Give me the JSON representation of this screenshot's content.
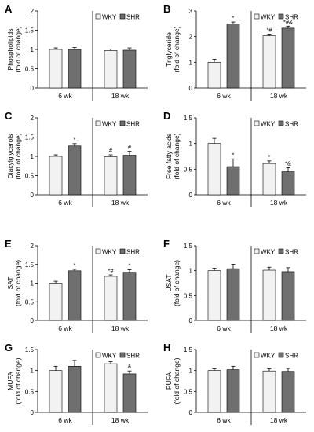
{
  "legend": {
    "items": [
      {
        "label": "WKY",
        "color": "#f2f2f2"
      },
      {
        "label": "SHR",
        "color": "#6f6f6f"
      }
    ]
  },
  "chart_data": [
    {
      "panel": "A",
      "type": "bar",
      "ylabel": [
        "Phospholipids",
        "(fold of change)"
      ],
      "ylim": [
        0,
        2
      ],
      "yticks": [
        "0",
        "0.5",
        "1",
        "1.5",
        "2"
      ],
      "tick_values": [
        0,
        0.5,
        1,
        1.5,
        2
      ],
      "categories": [
        "6 wk",
        "18 wk"
      ],
      "series": [
        {
          "name": "WKY",
          "values": [
            1.0,
            0.97
          ],
          "errors": [
            0.04,
            0.04
          ],
          "marks": [
            "",
            ""
          ]
        },
        {
          "name": "SHR",
          "values": [
            1.0,
            0.98
          ],
          "errors": [
            0.05,
            0.06
          ],
          "marks": [
            "",
            ""
          ]
        }
      ]
    },
    {
      "panel": "B",
      "type": "bar",
      "ylabel": [
        "Triglyceride",
        "(fold of change)"
      ],
      "ylim": [
        0,
        3
      ],
      "yticks": [
        "0",
        "1",
        "2",
        "3"
      ],
      "tick_values": [
        0,
        1,
        2,
        3
      ],
      "categories": [
        "6 wk",
        "18 wk"
      ],
      "series": [
        {
          "name": "WKY",
          "values": [
            1.0,
            2.03
          ],
          "errors": [
            0.12,
            0.07
          ],
          "marks": [
            "",
            "*#"
          ]
        },
        {
          "name": "SHR",
          "values": [
            2.5,
            2.33
          ],
          "errors": [
            0.07,
            0.08
          ],
          "marks": [
            "*",
            "*#&"
          ]
        }
      ]
    },
    {
      "panel": "C",
      "type": "bar",
      "ylabel": [
        "Diacylglycerols",
        "(fold of change)"
      ],
      "ylim": [
        0,
        2
      ],
      "yticks": [
        "0",
        "0.5",
        "1",
        "1.5",
        "2"
      ],
      "tick_values": [
        0,
        0.5,
        1,
        1.5,
        2
      ],
      "categories": [
        "6 wk",
        "18 wk"
      ],
      "series": [
        {
          "name": "WKY",
          "values": [
            1.0,
            0.99
          ],
          "errors": [
            0.04,
            0.05
          ],
          "marks": [
            "",
            "#"
          ]
        },
        {
          "name": "SHR",
          "values": [
            1.27,
            1.03
          ],
          "errors": [
            0.06,
            0.1
          ],
          "marks": [
            "*",
            "#"
          ]
        }
      ]
    },
    {
      "panel": "D",
      "type": "bar",
      "ylabel": [
        "Free fatty acids",
        "(fold of change)"
      ],
      "ylim": [
        0,
        1.5
      ],
      "yticks": [
        "0",
        "0.5",
        "1",
        "1.5"
      ],
      "tick_values": [
        0,
        0.5,
        1,
        1.5
      ],
      "categories": [
        "6 wk",
        "18 wk"
      ],
      "series": [
        {
          "name": "WKY",
          "values": [
            1.0,
            0.61
          ],
          "errors": [
            0.1,
            0.05
          ],
          "marks": [
            "",
            "*"
          ]
        },
        {
          "name": "SHR",
          "values": [
            0.55,
            0.45
          ],
          "errors": [
            0.15,
            0.08
          ],
          "marks": [
            "*",
            "*&"
          ]
        }
      ]
    },
    {
      "panel": "E",
      "type": "bar",
      "ylabel": [
        "SAT",
        "(fold of change)"
      ],
      "ylim": [
        0,
        2
      ],
      "yticks": [
        "0",
        "0.5",
        "1",
        "1.5",
        "2"
      ],
      "tick_values": [
        0,
        0.5,
        1,
        1.5,
        2
      ],
      "categories": [
        "6 wk",
        "18 wk"
      ],
      "series": [
        {
          "name": "WKY",
          "values": [
            1.0,
            1.18
          ],
          "errors": [
            0.05,
            0.04
          ],
          "marks": [
            "",
            "*#"
          ]
        },
        {
          "name": "SHR",
          "values": [
            1.33,
            1.29
          ],
          "errors": [
            0.04,
            0.07
          ],
          "marks": [
            "*",
            "*"
          ]
        }
      ]
    },
    {
      "panel": "F",
      "type": "bar",
      "ylabel": [
        "USAT",
        "(fold of change)"
      ],
      "ylim": [
        0,
        1.5
      ],
      "yticks": [
        "0",
        "0.5",
        "1",
        "1.5"
      ],
      "tick_values": [
        0,
        0.5,
        1,
        1.5
      ],
      "categories": [
        "6 wk",
        "18 wk"
      ],
      "series": [
        {
          "name": "WKY",
          "values": [
            1.0,
            1.01
          ],
          "errors": [
            0.05,
            0.06
          ],
          "marks": [
            "",
            ""
          ]
        },
        {
          "name": "SHR",
          "values": [
            1.04,
            0.98
          ],
          "errors": [
            0.09,
            0.08
          ],
          "marks": [
            "",
            ""
          ]
        }
      ]
    },
    {
      "panel": "G",
      "type": "bar",
      "ylabel": [
        "MUFA",
        "(fold of change)"
      ],
      "ylim": [
        0,
        1.5
      ],
      "yticks": [
        "0",
        "0.5",
        "1",
        "1.5"
      ],
      "tick_values": [
        0,
        0.5,
        1,
        1.5
      ],
      "categories": [
        "6 wk",
        "18 wk"
      ],
      "series": [
        {
          "name": "WKY",
          "values": [
            1.0,
            1.16
          ],
          "errors": [
            0.1,
            0.05
          ],
          "marks": [
            "",
            "*"
          ]
        },
        {
          "name": "SHR",
          "values": [
            1.1,
            0.92
          ],
          "errors": [
            0.14,
            0.07
          ],
          "marks": [
            "",
            "&"
          ]
        }
      ]
    },
    {
      "panel": "H",
      "type": "bar",
      "ylabel": [
        "PUFA",
        "(fold of change)"
      ],
      "ylim": [
        0,
        1.5
      ],
      "yticks": [
        "0",
        "0.5",
        "1",
        "1.5"
      ],
      "tick_values": [
        0,
        0.5,
        1,
        1.5
      ],
      "categories": [
        "6 wk",
        "18 wk"
      ],
      "series": [
        {
          "name": "WKY",
          "values": [
            1.0,
            0.99
          ],
          "errors": [
            0.04,
            0.05
          ],
          "marks": [
            "",
            ""
          ]
        },
        {
          "name": "SHR",
          "values": [
            1.02,
            0.98
          ],
          "errors": [
            0.08,
            0.07
          ],
          "marks": [
            "",
            ""
          ]
        }
      ]
    }
  ]
}
